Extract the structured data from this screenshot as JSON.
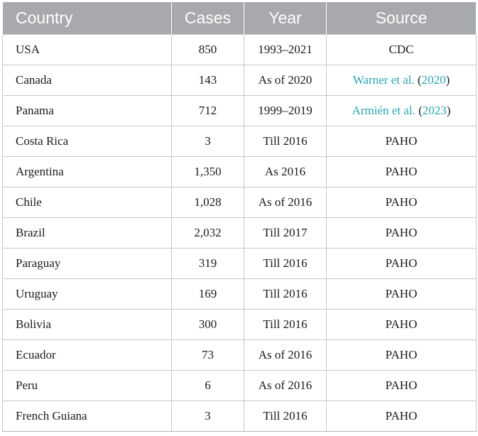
{
  "table": {
    "headers": [
      "Country",
      "Cases",
      "Year",
      "Source"
    ],
    "rows": [
      {
        "country": "USA",
        "cases": "850",
        "year": "1993–2021",
        "source": "CDC"
      },
      {
        "country": "Canada",
        "cases": "143",
        "year": "As of 2020",
        "source_author": "Warner et al.",
        "source_open": " (",
        "source_year": "2020",
        "source_close": ")"
      },
      {
        "country": "Panama",
        "cases": "712",
        "year": "1999–2019",
        "source_author": "Armién et al.",
        "source_open": " (",
        "source_year": "2023",
        "source_close": ")"
      },
      {
        "country": "Costa Rica",
        "cases": "3",
        "year": "Till 2016",
        "source": "PAHO"
      },
      {
        "country": "Argentina",
        "cases": "1,350",
        "year": "As 2016",
        "source": "PAHO"
      },
      {
        "country": "Chile",
        "cases": "1,028",
        "year": "As of 2016",
        "source": "PAHO"
      },
      {
        "country": "Brazil",
        "cases": "2,032",
        "year": "Till 2017",
        "source": "PAHO"
      },
      {
        "country": "Paraguay",
        "cases": "319",
        "year": "Till 2016",
        "source": "PAHO"
      },
      {
        "country": "Uruguay",
        "cases": "169",
        "year": "Till 2016",
        "source": "PAHO"
      },
      {
        "country": "Bolivia",
        "cases": "300",
        "year": "Till 2016",
        "source": "PAHO"
      },
      {
        "country": "Ecuador",
        "cases": "73",
        "year": "As of 2016",
        "source": "PAHO"
      },
      {
        "country": "Peru",
        "cases": "6",
        "year": "As of 2016",
        "source": "PAHO"
      },
      {
        "country": "French Guiana",
        "cases": "3",
        "year": "Till 2016",
        "source": "PAHO"
      }
    ]
  },
  "colors": {
    "header_bg": "#a7a9ac",
    "header_text": "#ffffff",
    "citation": "#2aa3b3",
    "border": "#c7c7c7"
  }
}
